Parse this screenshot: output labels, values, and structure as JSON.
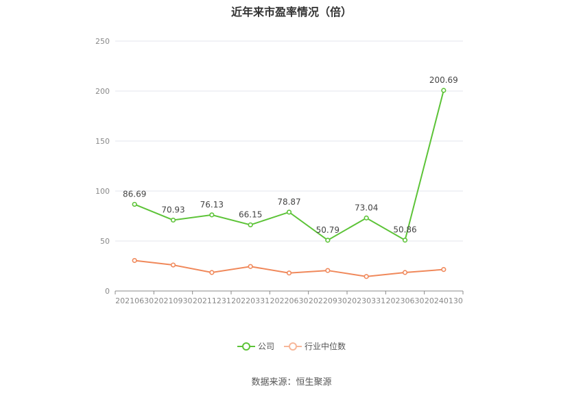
{
  "chart_data": {
    "type": "line",
    "title": "近年来市盈率情况（倍）",
    "categories": [
      "20210630",
      "20210930",
      "20211231",
      "20220331",
      "20220630",
      "20220930",
      "20230331",
      "20230630",
      "20240130"
    ],
    "ylim": [
      0,
      250
    ],
    "yticks": [
      0,
      50,
      100,
      150,
      200,
      250
    ],
    "grid": true,
    "legend_position": "bottom",
    "series": [
      {
        "name": "公司",
        "color": "#5cc337",
        "values": [
          86.69,
          70.93,
          76.13,
          66.15,
          78.87,
          50.79,
          73.04,
          50.86,
          200.69
        ],
        "labels": [
          "86.69",
          "70.93",
          "76.13",
          "66.15",
          "78.87",
          "50.79",
          "73.04",
          "50.86",
          "200.69"
        ]
      },
      {
        "name": "行业中位数",
        "color": "#f0885a",
        "values": [
          30.5,
          26.0,
          18.5,
          24.5,
          18.0,
          20.5,
          14.5,
          18.5,
          21.5
        ]
      }
    ]
  },
  "source": "数据来源：恒生聚源"
}
